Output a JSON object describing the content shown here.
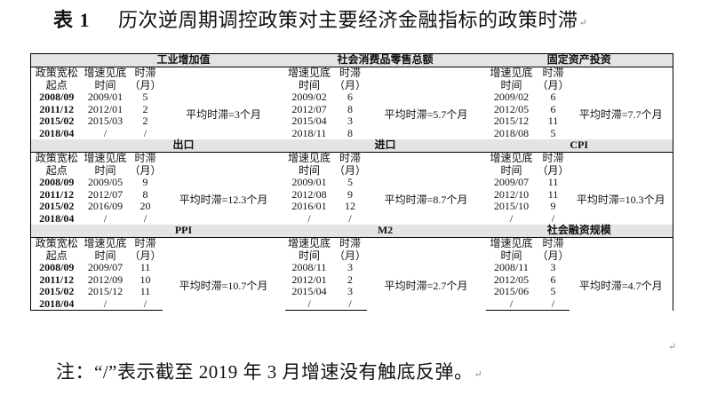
{
  "title": {
    "number": "表 1",
    "text": "历次逆周期调控政策对主要经济金融指标的政策时滞",
    "mark": "↵"
  },
  "table": {
    "row_header": {
      "label_line1": "政策宽松",
      "label_line2": "起点",
      "dates": [
        "2008/09",
        "2011/12",
        "2015/02",
        "2018/04"
      ]
    },
    "col_header_line1": [
      "增速见底",
      "时滞"
    ],
    "col_header_line2": [
      "时间",
      "（月）"
    ],
    "bands": [
      {
        "panels": [
          {
            "name": "工业增加值",
            "avg": "平均时滞=3个月",
            "rows": [
              [
                "2009/01",
                "5"
              ],
              [
                "2012/01",
                "2"
              ],
              [
                "2015/03",
                "2"
              ],
              [
                "/",
                "/"
              ]
            ]
          },
          {
            "name": "社会消费品零售总额",
            "avg": "平均时滞=5.7个月",
            "rows": [
              [
                "2009/02",
                "6"
              ],
              [
                "2012/07",
                "8"
              ],
              [
                "2015/04",
                "3"
              ],
              [
                "2018/11",
                "8"
              ]
            ]
          },
          {
            "name": "固定资产投资",
            "avg": "平均时滞=7.7个月",
            "rows": [
              [
                "2009/02",
                "6"
              ],
              [
                "2012/05",
                "6"
              ],
              [
                "2015/12",
                "11"
              ],
              [
                "2018/08",
                "5"
              ]
            ]
          }
        ]
      },
      {
        "panels": [
          {
            "name": "出口",
            "avg": "平均时滞=12.3个月",
            "rows": [
              [
                "2009/05",
                "9"
              ],
              [
                "2012/07",
                "8"
              ],
              [
                "2016/09",
                "20"
              ],
              [
                "/",
                "/"
              ]
            ]
          },
          {
            "name": "进口",
            "avg": "平均时滞=8.7个月",
            "rows": [
              [
                "2009/01",
                "5"
              ],
              [
                "2012/08",
                "9"
              ],
              [
                "2016/01",
                "12"
              ],
              [
                "/",
                "/"
              ]
            ]
          },
          {
            "name": "CPI",
            "avg": "平均时滞=10.3个月",
            "rows": [
              [
                "2009/07",
                "11"
              ],
              [
                "2012/10",
                "11"
              ],
              [
                "2015/10",
                "9"
              ],
              [
                "/",
                "/"
              ]
            ]
          }
        ]
      },
      {
        "panels": [
          {
            "name": "PPI",
            "avg": "平均时滞=10.7个月",
            "rows": [
              [
                "2009/07",
                "11"
              ],
              [
                "2012/09",
                "10"
              ],
              [
                "2015/12",
                "11"
              ],
              [
                "/",
                "/"
              ]
            ]
          },
          {
            "name": "M2",
            "avg": "平均时滞=2.7个月",
            "rows": [
              [
                "2008/11",
                "3"
              ],
              [
                "2012/01",
                "2"
              ],
              [
                "2015/04",
                "3"
              ],
              [
                "/",
                "/"
              ]
            ]
          },
          {
            "name": "社会融资规模",
            "avg": "平均时滞=4.7个月",
            "rows": [
              [
                "2008/11",
                "3"
              ],
              [
                "2012/05",
                "6"
              ],
              [
                "2015/06",
                "5"
              ],
              [
                "/",
                "/"
              ]
            ]
          }
        ]
      }
    ],
    "tail_mark": "↵"
  },
  "note": {
    "text": "注：“/”表示截至 2019 年 3 月增速没有触底反弹。",
    "mark": "↵"
  }
}
